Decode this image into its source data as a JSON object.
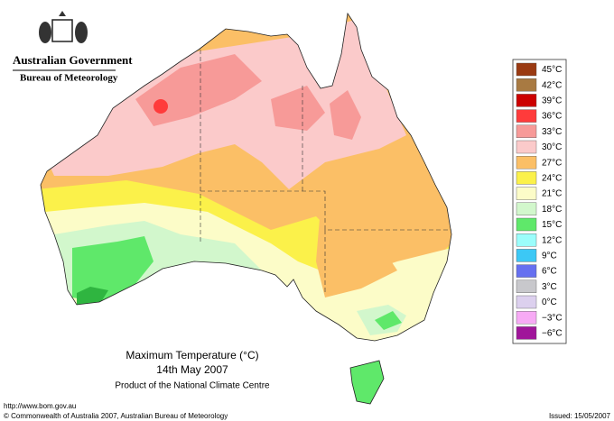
{
  "header": {
    "government": "Australian Government",
    "bureau": "Bureau of Meteorology"
  },
  "title": {
    "line1": "Maximum Temperature (°C)",
    "line2": "14th May 2007",
    "line3": "Product of the National Climate Centre"
  },
  "legend": [
    {
      "label": "45°C",
      "color": "#9a3a12"
    },
    {
      "label": "42°C",
      "color": "#a87a42"
    },
    {
      "label": "39°C",
      "color": "#cc0000"
    },
    {
      "label": "36°C",
      "color": "#ff3b3b"
    },
    {
      "label": "33°C",
      "color": "#f79a98"
    },
    {
      "label": "30°C",
      "color": "#fbcaca"
    },
    {
      "label": "27°C",
      "color": "#fbbf66"
    },
    {
      "label": "24°C",
      "color": "#fbf14a"
    },
    {
      "label": "21°C",
      "color": "#fcfcc8"
    },
    {
      "label": "18°C",
      "color": "#d2f7cc"
    },
    {
      "label": "15°C",
      "color": "#5fe86a"
    },
    {
      "label": "12°C",
      "color": "#9bfdfb"
    },
    {
      "label": "9°C",
      "color": "#3cc8f5"
    },
    {
      "label": "6°C",
      "color": "#6670f0"
    },
    {
      "label": "3°C",
      "color": "#c8c8cc"
    },
    {
      "label": "0°C",
      "color": "#dcd0ee"
    },
    {
      "label": "−3°C",
      "color": "#f7aaf5"
    },
    {
      "label": "−6°C",
      "color": "#a0159a"
    }
  ],
  "footer": {
    "url": "http://www.bom.gov.au",
    "copyright": "© Commonwealth of Australia 2007, Australian Bureau of Meteorology",
    "issued": "Issued: 15/05/2007"
  }
}
